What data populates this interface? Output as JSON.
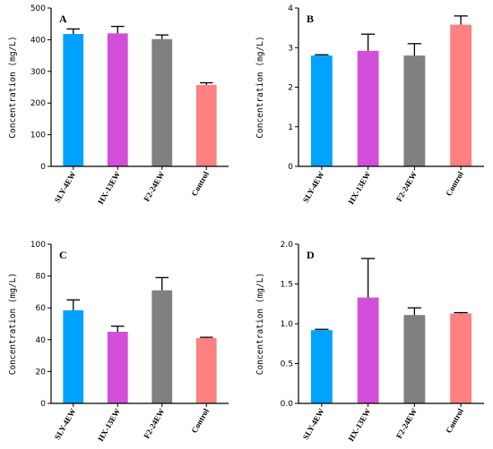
{
  "chart_data": [
    {
      "type": "bar",
      "panel": "A",
      "categories": [
        "SLY-4EW",
        "HX-13EW",
        "F2-24EW",
        "Control"
      ],
      "values": [
        418,
        420,
        402,
        257
      ],
      "errors": [
        16,
        22,
        13,
        7
      ],
      "colors": [
        "#00a2ff",
        "#d24fd9",
        "#808080",
        "#ff8080"
      ],
      "ylabel": "Concentration (mg/L)",
      "ylim": [
        0,
        500
      ],
      "yticks": [
        0,
        100,
        200,
        300,
        400,
        500
      ]
    },
    {
      "type": "bar",
      "panel": "B",
      "categories": [
        "SLY-4EW",
        "HX-13EW",
        "F2-24EW",
        "Control"
      ],
      "values": [
        2.8,
        2.92,
        2.8,
        3.58
      ],
      "errors": [
        0.02,
        0.42,
        0.3,
        0.22
      ],
      "colors": [
        "#00a2ff",
        "#d24fd9",
        "#808080",
        "#ff8080"
      ],
      "ylabel": "Concentration (mg/L)",
      "ylim": [
        0,
        4
      ],
      "yticks": [
        0,
        1,
        2,
        3,
        4
      ]
    },
    {
      "type": "bar",
      "panel": "C",
      "categories": [
        "SLY-4EW",
        "HX-13EW",
        "F2-24EW",
        "Control"
      ],
      "values": [
        58.5,
        45,
        71,
        41
      ],
      "errors": [
        6.5,
        3.5,
        8,
        0.5
      ],
      "colors": [
        "#00a2ff",
        "#d24fd9",
        "#808080",
        "#ff8080"
      ],
      "ylabel": "Concentration (mg/L)",
      "ylim": [
        0,
        100
      ],
      "yticks": [
        0,
        20,
        40,
        60,
        80,
        100
      ]
    },
    {
      "type": "bar",
      "panel": "D",
      "categories": [
        "SLY-4EW",
        "HX-13EW",
        "F2-24EW",
        "Control"
      ],
      "values": [
        0.92,
        1.33,
        1.11,
        1.13
      ],
      "errors": [
        0.01,
        0.49,
        0.09,
        0.01
      ],
      "colors": [
        "#00a2ff",
        "#d24fd9",
        "#808080",
        "#ff8080"
      ],
      "ylabel": "Concentration (mg/L)",
      "ylim": [
        0,
        2.0
      ],
      "yticks": [
        0.0,
        0.5,
        1.0,
        1.5,
        2.0
      ],
      "ytick_decimals": 1
    }
  ]
}
